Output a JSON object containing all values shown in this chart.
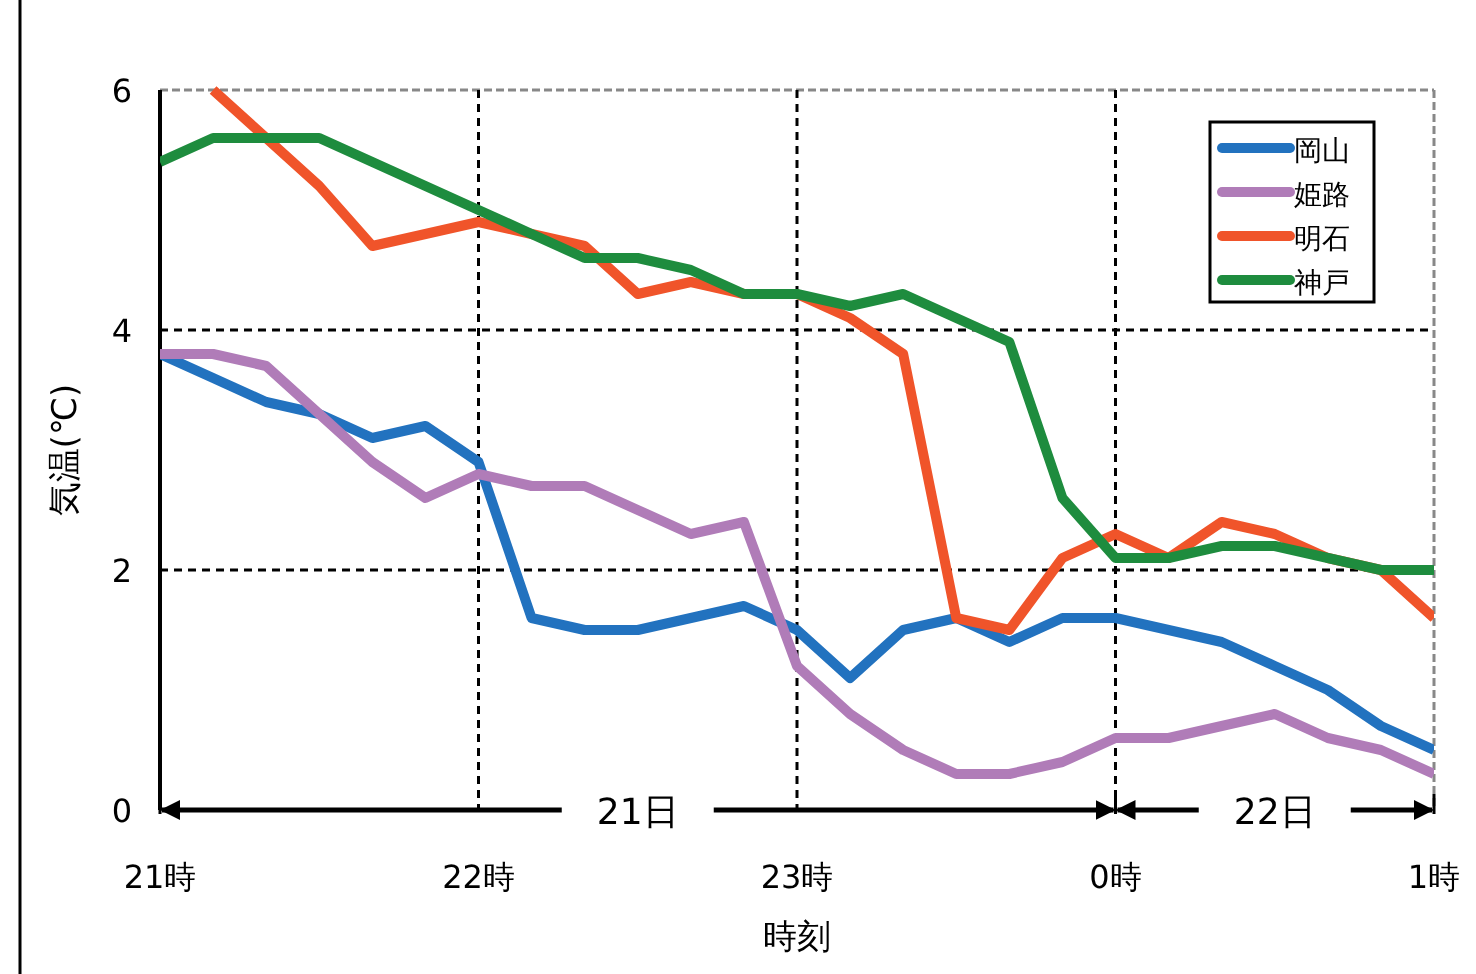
{
  "chart_data": {
    "type": "line",
    "xlabel": "時刻",
    "ylabel": "気温(℃)",
    "categories": [
      "21時",
      null,
      null,
      null,
      null,
      null,
      "22時",
      null,
      null,
      null,
      null,
      null,
      "23時",
      null,
      null,
      null,
      null,
      null,
      "0時",
      null,
      null,
      null,
      null,
      null,
      "1時"
    ],
    "series": [
      {
        "name": "岡山",
        "color": "#2272bf",
        "values": [
          3.8,
          3.6,
          3.4,
          3.3,
          3.1,
          3.2,
          2.9,
          1.6,
          1.5,
          1.5,
          1.6,
          1.7,
          1.5,
          1.1,
          1.5,
          1.6,
          1.4,
          1.6,
          1.6,
          1.5,
          1.4,
          1.2,
          1.0,
          0.7,
          0.5
        ]
      },
      {
        "name": "姫路",
        "color": "#b07cb8",
        "values": [
          3.8,
          3.8,
          3.7,
          3.3,
          2.9,
          2.6,
          2.8,
          2.7,
          2.7,
          2.5,
          2.3,
          2.4,
          1.2,
          0.8,
          0.5,
          0.3,
          0.3,
          0.4,
          0.6,
          0.6,
          0.7,
          0.8,
          0.6,
          0.5,
          0.3
        ]
      },
      {
        "name": "明石",
        "color": "#f0542a",
        "values": [
          null,
          6.0,
          5.6,
          5.2,
          4.7,
          4.8,
          4.9,
          4.8,
          4.7,
          4.3,
          4.4,
          4.3,
          4.3,
          4.1,
          3.8,
          1.6,
          1.5,
          2.1,
          2.3,
          2.1,
          2.4,
          2.3,
          2.1,
          2.0,
          1.6
        ]
      },
      {
        "name": "神戸",
        "color": "#1e8c3e",
        "values": [
          5.4,
          5.6,
          5.6,
          5.6,
          5.4,
          5.2,
          5.0,
          4.8,
          4.6,
          4.6,
          4.5,
          4.3,
          4.3,
          4.2,
          4.3,
          4.1,
          3.9,
          2.6,
          2.1,
          2.1,
          2.2,
          2.2,
          2.1,
          2.0,
          2.0
        ]
      }
    ],
    "ylim": [
      0,
      6
    ],
    "yticks": [
      0,
      2,
      4,
      6
    ],
    "annotations": [
      "21日",
      "22日"
    ],
    "grid": true,
    "legend": "top right",
    "line_style": "solid",
    "marker": "none"
  }
}
